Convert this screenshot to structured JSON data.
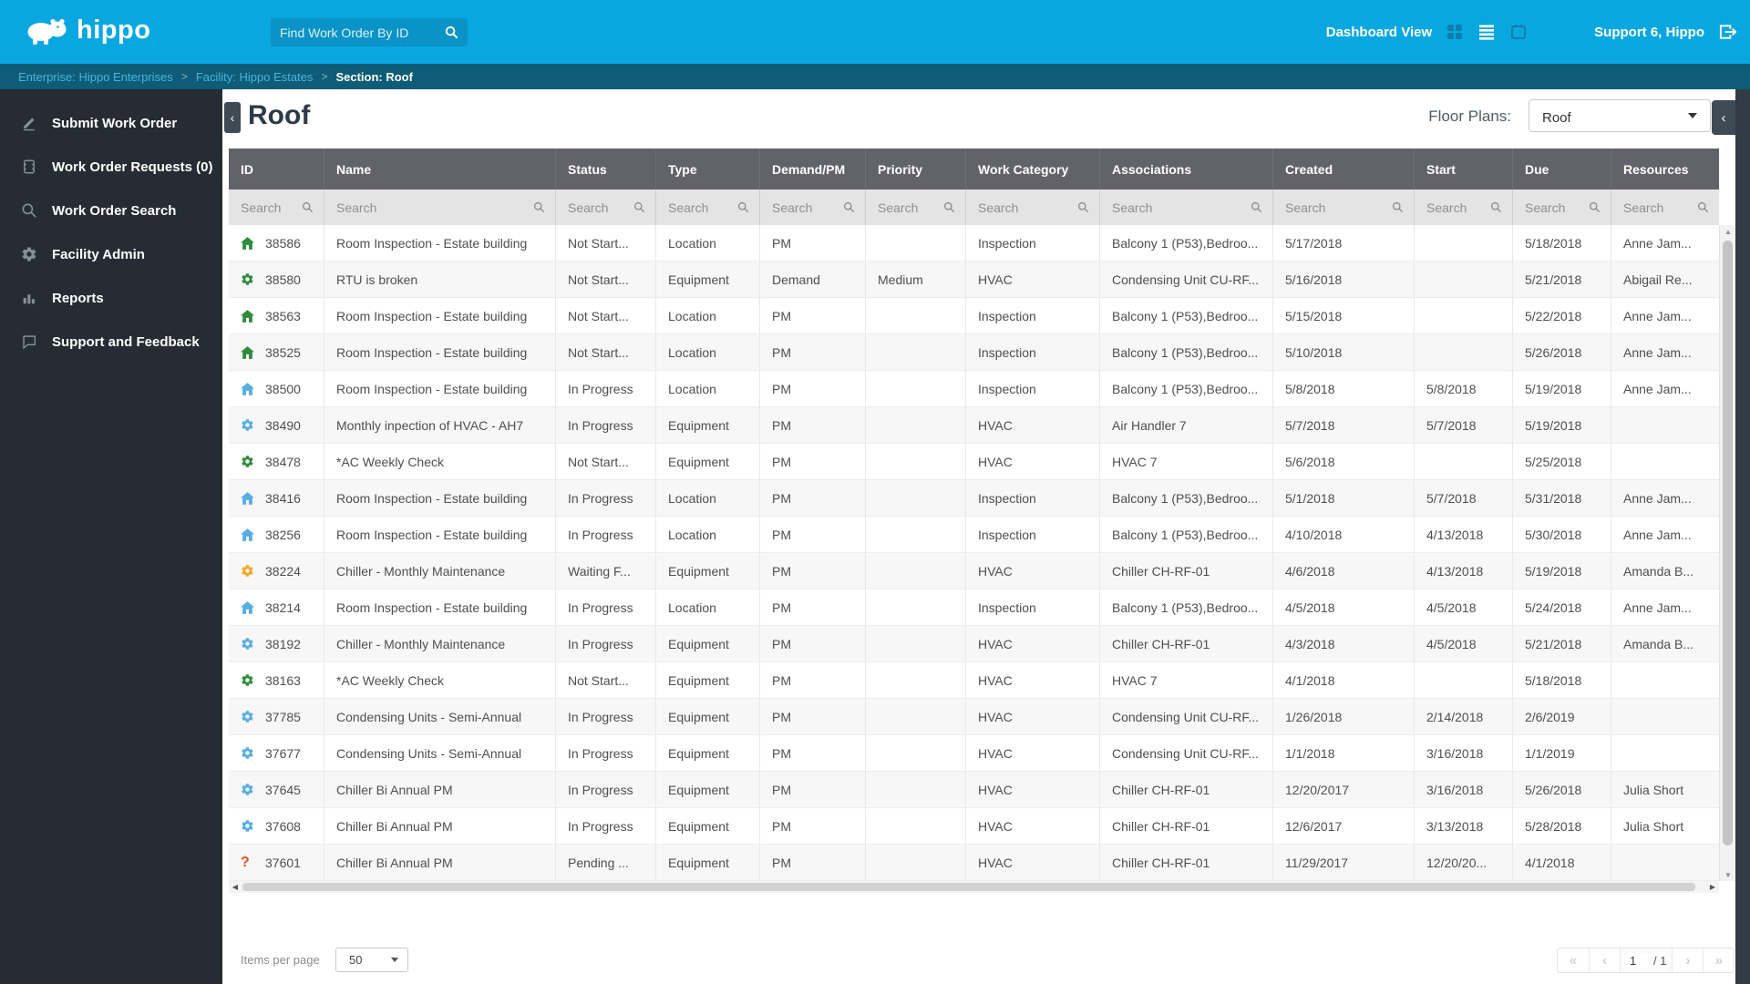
{
  "topbar": {
    "logo_text": "hippo",
    "search_placeholder": "Find Work Order By ID",
    "dashboard_view_label": "Dashboard View",
    "user_label": "Support 6, Hippo"
  },
  "breadcrumb": {
    "separator": ">",
    "items": [
      {
        "label": "Enterprise: Hippo Enterprises",
        "link": true
      },
      {
        "label": "Facility: Hippo Estates",
        "link": true
      },
      {
        "label": "Section: Roof",
        "link": false
      }
    ]
  },
  "sidebar": {
    "items": [
      {
        "label": "Submit Work Order",
        "icon": "pencil-icon"
      },
      {
        "label": "Work Order Requests (0)",
        "icon": "ticket-icon"
      },
      {
        "label": "Work Order Search",
        "icon": "search-icon"
      },
      {
        "label": "Facility Admin",
        "icon": "gear-icon"
      },
      {
        "label": "Reports",
        "icon": "bar-chart-icon"
      },
      {
        "label": "Support and Feedback",
        "icon": "feedback-icon"
      }
    ]
  },
  "page": {
    "title": "Roof",
    "floor_plans_label": "Floor Plans:",
    "floor_plans_value": "Roof"
  },
  "table": {
    "search_placeholder": "Search",
    "columns": [
      {
        "key": "id",
        "label": "ID"
      },
      {
        "key": "name",
        "label": "Name"
      },
      {
        "key": "status",
        "label": "Status"
      },
      {
        "key": "type",
        "label": "Type"
      },
      {
        "key": "demand_pm",
        "label": "Demand/PM"
      },
      {
        "key": "priority",
        "label": "Priority"
      },
      {
        "key": "work_category",
        "label": "Work Category"
      },
      {
        "key": "associations",
        "label": "Associations"
      },
      {
        "key": "created",
        "label": "Created"
      },
      {
        "key": "start",
        "label": "Start"
      },
      {
        "key": "due",
        "label": "Due"
      },
      {
        "key": "resources",
        "label": "Resources"
      }
    ],
    "rows": [
      {
        "id": "38586",
        "icon": "house",
        "icon_color": "#2f8c3c",
        "name": "Room Inspection - Estate building",
        "status": "Not Start...",
        "type": "Location",
        "demand_pm": "PM",
        "priority": "",
        "work_category": "Inspection",
        "associations": "Balcony 1 (P53),Bedroo...",
        "created": "5/17/2018",
        "start": "",
        "due": "5/18/2018",
        "resources": "Anne Jam..."
      },
      {
        "id": "38580",
        "icon": "gear",
        "icon_color": "#2f8c3c",
        "name": "RTU is broken",
        "status": "Not Start...",
        "type": "Equipment",
        "demand_pm": "Demand",
        "priority": "Medium",
        "work_category": "HVAC",
        "associations": "Condensing Unit CU-RF...",
        "created": "5/16/2018",
        "start": "",
        "due": "5/21/2018",
        "resources": "Abigail Re..."
      },
      {
        "id": "38563",
        "icon": "house",
        "icon_color": "#2f8c3c",
        "name": "Room Inspection - Estate building",
        "status": "Not Start...",
        "type": "Location",
        "demand_pm": "PM",
        "priority": "",
        "work_category": "Inspection",
        "associations": "Balcony 1 (P53),Bedroo...",
        "created": "5/15/2018",
        "start": "",
        "due": "5/22/2018",
        "resources": "Anne Jam..."
      },
      {
        "id": "38525",
        "icon": "house",
        "icon_color": "#2f8c3c",
        "name": "Room Inspection - Estate building",
        "status": "Not Start...",
        "type": "Location",
        "demand_pm": "PM",
        "priority": "",
        "work_category": "Inspection",
        "associations": "Balcony 1 (P53),Bedroo...",
        "created": "5/10/2018",
        "start": "",
        "due": "5/26/2018",
        "resources": "Anne Jam..."
      },
      {
        "id": "38500",
        "icon": "house",
        "icon_color": "#58ade2",
        "name": "Room Inspection - Estate building",
        "status": "In Progress",
        "type": "Location",
        "demand_pm": "PM",
        "priority": "",
        "work_category": "Inspection",
        "associations": "Balcony 1 (P53),Bedroo...",
        "created": "5/8/2018",
        "start": "5/8/2018",
        "due": "5/19/2018",
        "resources": "Anne Jam..."
      },
      {
        "id": "38490",
        "icon": "gear",
        "icon_color": "#58ade2",
        "name": "Monthly inpection of HVAC - AH7",
        "status": "In Progress",
        "type": "Equipment",
        "demand_pm": "PM",
        "priority": "",
        "work_category": "HVAC",
        "associations": "Air Handler 7",
        "created": "5/7/2018",
        "start": "5/7/2018",
        "due": "5/19/2018",
        "resources": ""
      },
      {
        "id": "38478",
        "icon": "gear",
        "icon_color": "#2f8c3c",
        "name": "*AC Weekly Check",
        "status": "Not Start...",
        "type": "Equipment",
        "demand_pm": "PM",
        "priority": "",
        "work_category": "HVAC",
        "associations": "HVAC 7",
        "created": "5/6/2018",
        "start": "",
        "due": "5/25/2018",
        "resources": ""
      },
      {
        "id": "38416",
        "icon": "house",
        "icon_color": "#58ade2",
        "name": "Room Inspection - Estate building",
        "status": "In Progress",
        "type": "Location",
        "demand_pm": "PM",
        "priority": "",
        "work_category": "Inspection",
        "associations": "Balcony 1 (P53),Bedroo...",
        "created": "5/1/2018",
        "start": "5/7/2018",
        "due": "5/31/2018",
        "resources": "Anne Jam..."
      },
      {
        "id": "38256",
        "icon": "house",
        "icon_color": "#58ade2",
        "name": "Room Inspection - Estate building",
        "status": "In Progress",
        "type": "Location",
        "demand_pm": "PM",
        "priority": "",
        "work_category": "Inspection",
        "associations": "Balcony 1 (P53),Bedroo...",
        "created": "4/10/2018",
        "start": "4/13/2018",
        "due": "5/30/2018",
        "resources": "Anne Jam..."
      },
      {
        "id": "38224",
        "icon": "gear",
        "icon_color": "#f5a81d",
        "name": "Chiller - Monthly Maintenance",
        "status": "Waiting F...",
        "type": "Equipment",
        "demand_pm": "PM",
        "priority": "",
        "work_category": "HVAC",
        "associations": "Chiller CH-RF-01",
        "created": "4/6/2018",
        "start": "4/13/2018",
        "due": "5/19/2018",
        "resources": "Amanda B..."
      },
      {
        "id": "38214",
        "icon": "house",
        "icon_color": "#58ade2",
        "name": "Room Inspection - Estate building",
        "status": "In Progress",
        "type": "Location",
        "demand_pm": "PM",
        "priority": "",
        "work_category": "Inspection",
        "associations": "Balcony 1 (P53),Bedroo...",
        "created": "4/5/2018",
        "start": "4/5/2018",
        "due": "5/24/2018",
        "resources": "Anne Jam..."
      },
      {
        "id": "38192",
        "icon": "gear",
        "icon_color": "#58ade2",
        "name": "Chiller - Monthly Maintenance",
        "status": "In Progress",
        "type": "Equipment",
        "demand_pm": "PM",
        "priority": "",
        "work_category": "HVAC",
        "associations": "Chiller CH-RF-01",
        "created": "4/3/2018",
        "start": "4/5/2018",
        "due": "5/21/2018",
        "resources": "Amanda B..."
      },
      {
        "id": "38163",
        "icon": "gear",
        "icon_color": "#2f8c3c",
        "name": "*AC Weekly Check",
        "status": "Not Start...",
        "type": "Equipment",
        "demand_pm": "PM",
        "priority": "",
        "work_category": "HVAC",
        "associations": "HVAC 7",
        "created": "4/1/2018",
        "start": "",
        "due": "5/18/2018",
        "resources": ""
      },
      {
        "id": "37785",
        "icon": "gear",
        "icon_color": "#58ade2",
        "name": "Condensing Units - Semi-Annual",
        "status": "In Progress",
        "type": "Equipment",
        "demand_pm": "PM",
        "priority": "",
        "work_category": "HVAC",
        "associations": "Condensing Unit CU-RF...",
        "created": "1/26/2018",
        "start": "2/14/2018",
        "due": "2/6/2019",
        "resources": ""
      },
      {
        "id": "37677",
        "icon": "gear",
        "icon_color": "#58ade2",
        "name": "Condensing Units - Semi-Annual",
        "status": "In Progress",
        "type": "Equipment",
        "demand_pm": "PM",
        "priority": "",
        "work_category": "HVAC",
        "associations": "Condensing Unit CU-RF...",
        "created": "1/1/2018",
        "start": "3/16/2018",
        "due": "1/1/2019",
        "resources": ""
      },
      {
        "id": "37645",
        "icon": "gear",
        "icon_color": "#58ade2",
        "name": "Chiller Bi Annual PM",
        "status": "In Progress",
        "type": "Equipment",
        "demand_pm": "PM",
        "priority": "",
        "work_category": "HVAC",
        "associations": "Chiller CH-RF-01",
        "created": "12/20/2017",
        "start": "3/16/2018",
        "due": "5/26/2018",
        "resources": "Julia Short"
      },
      {
        "id": "37608",
        "icon": "gear",
        "icon_color": "#58ade2",
        "name": "Chiller Bi Annual PM",
        "status": "In Progress",
        "type": "Equipment",
        "demand_pm": "PM",
        "priority": "",
        "work_category": "HVAC",
        "associations": "Chiller CH-RF-01",
        "created": "12/6/2017",
        "start": "3/13/2018",
        "due": "5/28/2018",
        "resources": "Julia Short"
      },
      {
        "id": "37601",
        "icon": "question",
        "icon_color": "#e2532b",
        "name": "Chiller Bi Annual PM",
        "status": "Pending ...",
        "type": "Equipment",
        "demand_pm": "PM",
        "priority": "",
        "work_category": "HVAC",
        "associations": "Chiller CH-RF-01",
        "created": "11/29/2017",
        "start": "12/20/20...",
        "due": "4/1/2018",
        "resources": ""
      }
    ]
  },
  "pagination": {
    "items_per_page_label": "Items per page",
    "items_per_page_value": "50",
    "page_value": "1",
    "total_label": "/ 1",
    "icons": {
      "first": "«",
      "prev": "‹",
      "next": "›",
      "last": "»"
    }
  },
  "colors": {
    "topbar": "#09a7e0",
    "breadcrumb_bg": "#0e5c77",
    "sidebar_bg": "#252c33",
    "table_header_bg": "#62626a",
    "link": "#45b6e0",
    "status_green": "#2f8c3c",
    "status_blue": "#58ade2",
    "status_orange": "#f5a81d",
    "status_red": "#e2532b"
  }
}
